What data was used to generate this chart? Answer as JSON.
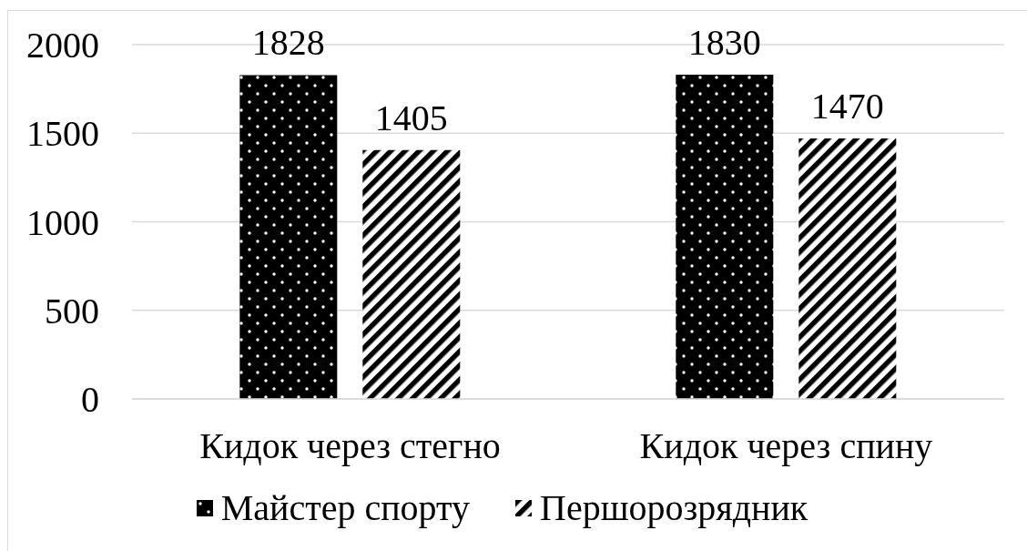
{
  "chart_data": {
    "type": "bar",
    "categories": [
      "Кидок через стегно",
      "Кидок через спину"
    ],
    "series": [
      {
        "name": "Майстер спорту",
        "color": "#000000",
        "values": [
          1828,
          1830
        ]
      },
      {
        "name": "Першорозрядник",
        "color": "#000000",
        "values": [
          1405,
          1470
        ]
      }
    ],
    "ylim": [
      0,
      2000
    ],
    "yticks": [
      0,
      500,
      1000,
      1500,
      2000
    ],
    "grid": "y",
    "legend": "bottom",
    "data_labels": true
  }
}
